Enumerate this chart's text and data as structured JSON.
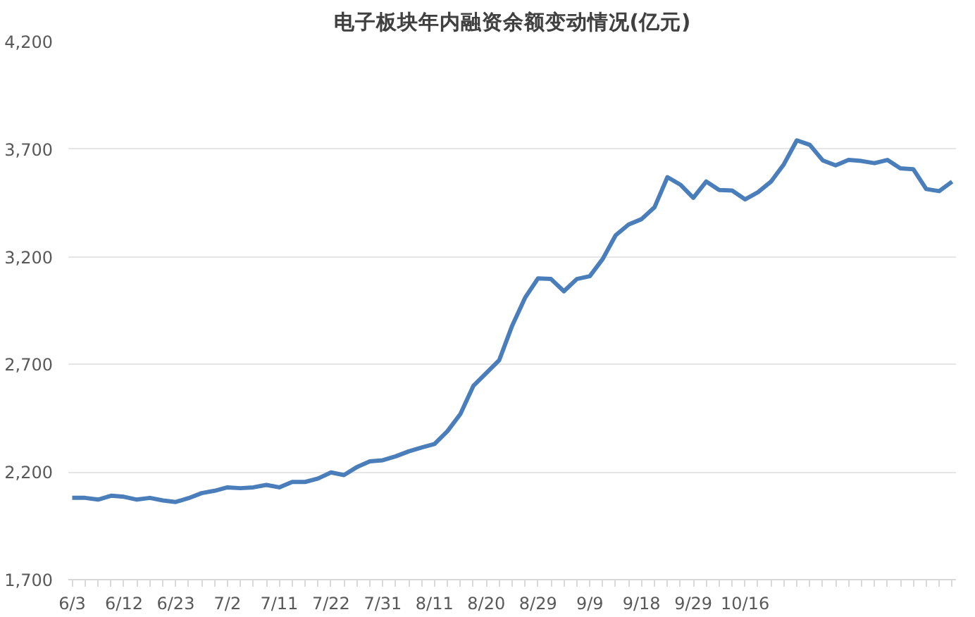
{
  "chart_data": {
    "type": "line",
    "title": "电子板块年内融资余额变动情况(亿元)",
    "categories": [
      "6/3",
      null,
      null,
      null,
      "6/12",
      null,
      null,
      null,
      "6/23",
      null,
      null,
      null,
      "7/2",
      null,
      null,
      null,
      "7/11",
      null,
      null,
      null,
      "7/22",
      null,
      null,
      null,
      "7/31",
      null,
      null,
      null,
      "8/11",
      null,
      null,
      null,
      "8/20",
      null,
      null,
      null,
      "8/29",
      null,
      null,
      null,
      "9/9",
      null,
      null,
      null,
      "9/18",
      null,
      null,
      null,
      "9/29",
      null,
      null,
      null,
      "10/16",
      null,
      null,
      null,
      null,
      null,
      null,
      null,
      null,
      null,
      null,
      null,
      null,
      null,
      null,
      null,
      null
    ],
    "series": [
      {
        "color": "#4a7ebb",
        "values": [
          2080,
          2080,
          2072,
          2090,
          2085,
          2072,
          2080,
          2068,
          2061,
          2079,
          2102,
          2113,
          2129,
          2125,
          2129,
          2140,
          2129,
          2154,
          2154,
          2170,
          2198,
          2186,
          2223,
          2250,
          2255,
          2273,
          2296,
          2314,
          2330,
          2390,
          2470,
          2600,
          2660,
          2720,
          2880,
          3010,
          3100,
          3097,
          3040,
          3097,
          3110,
          3190,
          3300,
          3350,
          3375,
          3430,
          3570,
          3535,
          3474,
          3550,
          3510,
          3508,
          3467,
          3500,
          3549,
          3630,
          3741,
          3720,
          3648,
          3625,
          3650,
          3645,
          3635,
          3650,
          3611,
          3607,
          3515,
          3505,
          3549
        ]
      }
    ],
    "ylim": [
      1700,
      4200
    ],
    "yticks": [
      {
        "value": 1700,
        "label": "1,700"
      },
      {
        "value": 2200,
        "label": "2,200"
      },
      {
        "value": 2700,
        "label": "2,700"
      },
      {
        "value": 3200,
        "label": "3,200"
      },
      {
        "value": 3700,
        "label": "3,700"
      },
      {
        "value": 4200,
        "label": "4,200"
      }
    ],
    "grid": "y",
    "marker": "none",
    "line_style": "solid"
  }
}
